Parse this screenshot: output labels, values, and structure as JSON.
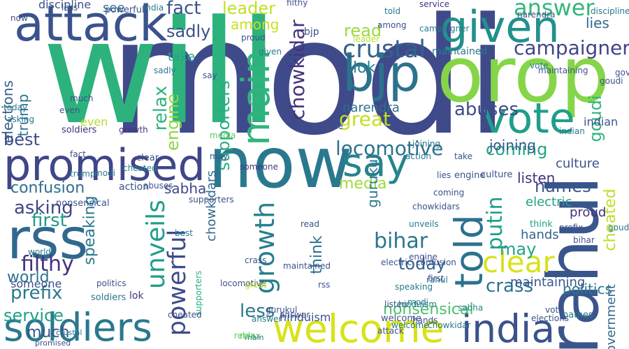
{
  "word_cloud": {
    "background_color": "#ffffff",
    "words": [
      {
        "text": "modi",
        "color": "#3f4a8a"
      },
      {
        "text": "will",
        "color": "#2db27d"
      },
      {
        "text": "orop",
        "color": "#86d549"
      },
      {
        "text": "now",
        "color": "#2a788e"
      },
      {
        "text": "attack",
        "color": "#3b528b"
      },
      {
        "text": "rahul",
        "color": "#39568c"
      },
      {
        "text": "promised",
        "color": "#404688"
      },
      {
        "text": "given",
        "color": "#21918c"
      },
      {
        "text": "vote",
        "color": "#1f9e89"
      },
      {
        "text": "rss",
        "color": "#31688e"
      },
      {
        "text": "bjp",
        "color": "#2c728e"
      },
      {
        "text": "soldiers",
        "color": "#2a788e"
      },
      {
        "text": "welcome",
        "color": "#d8e219"
      },
      {
        "text": "india",
        "color": "#3b528b"
      },
      {
        "text": "say",
        "color": "#25848e"
      },
      {
        "text": "main",
        "color": "#2fb47c"
      },
      {
        "text": "told",
        "color": "#2c728e"
      },
      {
        "text": "crustal",
        "color": "#34618d"
      },
      {
        "text": "campaigner",
        "color": "#414487"
      },
      {
        "text": "answer",
        "color": "#35b779"
      },
      {
        "text": "unveils",
        "color": "#1f9e89"
      },
      {
        "text": "chowkidar",
        "color": "#46327e"
      },
      {
        "text": "growth",
        "color": "#277f8e"
      },
      {
        "text": "clear",
        "color": "#d8e219"
      },
      {
        "text": "confusion",
        "color": "#2e6e8e"
      },
      {
        "text": "powerful",
        "color": "#3e4c8a"
      },
      {
        "text": "abuses",
        "color": "#3e4a89"
      },
      {
        "text": "locomotive",
        "color": "#2c728e"
      },
      {
        "text": "putin",
        "color": "#1fa088"
      },
      {
        "text": "leader",
        "color": "#c0df25"
      },
      {
        "text": "great",
        "color": "#c2df23"
      },
      {
        "text": "read",
        "color": "#9bd93c"
      },
      {
        "text": "media",
        "color": "#a0da39"
      },
      {
        "text": "bihar",
        "color": "#2a788e"
      },
      {
        "text": "asking",
        "color": "#404688"
      },
      {
        "text": "first",
        "color": "#1f9a8a"
      },
      {
        "text": "filthy",
        "color": "#46327e"
      },
      {
        "text": "world",
        "color": "#2c738e"
      },
      {
        "text": "fact",
        "color": "#3b528b"
      },
      {
        "text": "sadly",
        "color": "#3b528b"
      },
      {
        "text": "among",
        "color": "#c8e020"
      },
      {
        "text": "lok",
        "color": "#26828e"
      },
      {
        "text": "elections",
        "color": "#34618d"
      },
      {
        "text": "trump",
        "color": "#2d708e"
      },
      {
        "text": "relax",
        "color": "#2fb47c"
      },
      {
        "text": "engine",
        "color": "#8bd646"
      },
      {
        "text": "supporters",
        "color": "#26ad81"
      },
      {
        "text": "best",
        "color": "#3e4c8a"
      },
      {
        "text": "names",
        "color": "#3b528b"
      },
      {
        "text": "prefix",
        "color": "#2a788e"
      },
      {
        "text": "service",
        "color": "#1fa187"
      },
      {
        "text": "much",
        "color": "#3a538b"
      },
      {
        "text": "sabha",
        "color": "#3f4889"
      },
      {
        "text": "think",
        "color": "#2c728e"
      },
      {
        "text": "today",
        "color": "#33638d"
      },
      {
        "text": "crass",
        "color": "#2c728e"
      },
      {
        "text": "may",
        "color": "#20a386"
      },
      {
        "text": "less",
        "color": "#2a788e"
      },
      {
        "text": "nonsensical",
        "color": "#4ac16d"
      },
      {
        "text": "goudi",
        "color": "#2eb37c"
      },
      {
        "text": "cheated",
        "color": "#bddf26"
      },
      {
        "text": "coming",
        "color": "#21a685"
      },
      {
        "text": "maintained",
        "color": "#2a788e"
      },
      {
        "text": "culture",
        "color": "#3b528b"
      },
      {
        "text": "joining",
        "color": "#39568c"
      },
      {
        "text": "listen",
        "color": "#46307e"
      },
      {
        "text": "electric",
        "color": "#20a386"
      },
      {
        "text": "hands",
        "color": "#33628d"
      },
      {
        "text": "chowkidars",
        "color": "#31688e"
      },
      {
        "text": "narendra",
        "color": "#2d708e"
      },
      {
        "text": "government",
        "color": "#31688e"
      },
      {
        "text": "discipline",
        "color": "#3b528b"
      },
      {
        "text": "lies",
        "color": "#31688e"
      },
      {
        "text": "politics",
        "color": "#2a788e"
      },
      {
        "text": "action",
        "color": "#3b528b"
      },
      {
        "text": "proud",
        "color": "#46307e"
      },
      {
        "text": "someone",
        "color": "#3b528b"
      },
      {
        "text": "gurukul",
        "color": "#2a788e"
      },
      {
        "text": "hinduism",
        "color": "#3b528b"
      },
      {
        "text": "speaking",
        "color": "#2a788e"
      },
      {
        "text": "maintaining",
        "color": "#39568c"
      },
      {
        "text": "take",
        "color": "#20a386"
      },
      {
        "text": "indian",
        "color": "#3b528b"
      },
      {
        "text": "even",
        "color": "#b5de2b"
      },
      {
        "text": "see",
        "color": "#2a788e"
      },
      {
        "text": "cheated",
        "color": "#26828e"
      },
      {
        "text": "welcome",
        "color": "#3b528b"
      },
      {
        "text": "soldiers",
        "color": "#2a788e"
      },
      {
        "text": "modi",
        "color": "#2a788e"
      },
      {
        "text": "service",
        "color": "#46327e"
      },
      {
        "text": "engine",
        "color": "#3b528b"
      },
      {
        "text": "answer",
        "color": "#2a788e"
      },
      {
        "text": "supporters",
        "color": "#26ad81"
      },
      {
        "text": "goudi",
        "color": "#3b528b"
      },
      {
        "text": "vote",
        "color": "#2a788e"
      },
      {
        "text": "powerful",
        "color": "#3b528b"
      },
      {
        "text": "lok",
        "color": "#46327e"
      },
      {
        "text": "relax",
        "color": "#5ec962"
      },
      {
        "text": "promised",
        "color": "#3b528b"
      },
      {
        "text": "rahul",
        "color": "#2a788e"
      },
      {
        "text": "modi",
        "color": "#26828e"
      },
      {
        "text": "hands",
        "color": "#3b528b"
      },
      {
        "text": "names",
        "color": "#2a788e"
      },
      {
        "text": "cheated",
        "color": "#3b528b"
      },
      {
        "text": "sabha",
        "color": "#26828e"
      },
      {
        "text": "elections",
        "color": "#3b528b"
      },
      {
        "text": "locomotive",
        "color": "#3b528b"
      },
      {
        "text": "main",
        "color": "#2a788e"
      },
      {
        "text": "read",
        "color": "#3b528b"
      },
      {
        "text": "think",
        "color": "#20a386"
      },
      {
        "text": "prefix",
        "color": "#3b528b"
      },
      {
        "text": "crustal",
        "color": "#2a788e"
      },
      {
        "text": "first",
        "color": "#3b528b"
      },
      {
        "text": "growth",
        "color": "#46327e"
      },
      {
        "text": "electric",
        "color": "#3b528b"
      },
      {
        "text": "chowkidar",
        "color": "#2a788e"
      },
      {
        "text": "bjp",
        "color": "#3b528b"
      },
      {
        "text": "given",
        "color": "#2a788e"
      },
      {
        "text": "clear",
        "color": "#3b528b"
      },
      {
        "text": "soldiers",
        "color": "#46327e"
      },
      {
        "text": "narendra",
        "color": "#3b528b"
      },
      {
        "text": "confusion",
        "color": "#3b528b"
      },
      {
        "text": "maintained",
        "color": "#3b528b"
      },
      {
        "text": "crass",
        "color": "#3b528b"
      },
      {
        "text": "proud",
        "color": "#3b528b"
      },
      {
        "text": "speaking",
        "color": "#2a788e"
      },
      {
        "text": "politics",
        "color": "#3b528b"
      },
      {
        "text": "world",
        "color": "#2a788e"
      },
      {
        "text": "attack",
        "color": "#3b528b"
      },
      {
        "text": "unveils",
        "color": "#2a788e"
      },
      {
        "text": "fact",
        "color": "#3b528b"
      },
      {
        "text": "someone",
        "color": "#46327e"
      },
      {
        "text": "india",
        "color": "#2a788e"
      },
      {
        "text": "now",
        "color": "#3b528b"
      },
      {
        "text": "trump",
        "color": "#2a788e"
      },
      {
        "text": "filthy",
        "color": "#3b528b"
      },
      {
        "text": "best",
        "color": "#2a788e"
      },
      {
        "text": "rss",
        "color": "#3b528b"
      },
      {
        "text": "told",
        "color": "#2a788e"
      },
      {
        "text": "leader",
        "color": "#b5de2b"
      },
      {
        "text": "say",
        "color": "#3b528b"
      },
      {
        "text": "media",
        "color": "#5ec962"
      },
      {
        "text": "chowkidars",
        "color": "#3b528b"
      },
      {
        "text": "less",
        "color": "#3b528b"
      },
      {
        "text": "answer",
        "color": "#3b528b"
      },
      {
        "text": "welcome",
        "color": "#2a788e"
      },
      {
        "text": "may",
        "color": "#3b528b"
      },
      {
        "text": "putin",
        "color": "#3b528b"
      },
      {
        "text": "culture",
        "color": "#3b528b"
      },
      {
        "text": "goudi",
        "color": "#2a788e"
      },
      {
        "text": "listen",
        "color": "#3b528b"
      },
      {
        "text": "gurukul",
        "color": "#3b528b"
      },
      {
        "text": "campaigner",
        "color": "#2a788e"
      },
      {
        "text": "joining",
        "color": "#2a788e"
      },
      {
        "text": "vote",
        "color": "#3b528b"
      },
      {
        "text": "lies",
        "color": "#3b528b"
      },
      {
        "text": "hinduism",
        "color": "#2a788e"
      },
      {
        "text": "engine",
        "color": "#3b528b"
      },
      {
        "text": "bihar",
        "color": "#3b528b"
      },
      {
        "text": "today",
        "color": "#2a788e"
      },
      {
        "text": "abuses",
        "color": "#3b528b"
      },
      {
        "text": "government",
        "color": "#3b528b"
      },
      {
        "text": "discipline",
        "color": "#2a788e"
      },
      {
        "text": "nonsensical",
        "color": "#3b528b"
      },
      {
        "text": "relax",
        "color": "#5ec962"
      },
      {
        "text": "take",
        "color": "#3b528b"
      },
      {
        "text": "asking",
        "color": "#2a788e"
      },
      {
        "text": "maintaining",
        "color": "#3b528b"
      },
      {
        "text": "great",
        "color": "#c2df23"
      },
      {
        "text": "supporters",
        "color": "#3b528b"
      },
      {
        "text": "action",
        "color": "#2a788e"
      },
      {
        "text": "coming",
        "color": "#3b528b"
      },
      {
        "text": "much",
        "color": "#3b528b"
      },
      {
        "text": "sadly",
        "color": "#2a788e"
      },
      {
        "text": "among",
        "color": "#3b528b"
      },
      {
        "text": "indian",
        "color": "#2a788e"
      },
      {
        "text": "even",
        "color": "#3b528b"
      },
      {
        "text": "see",
        "color": "#3b528b"
      }
    ]
  }
}
